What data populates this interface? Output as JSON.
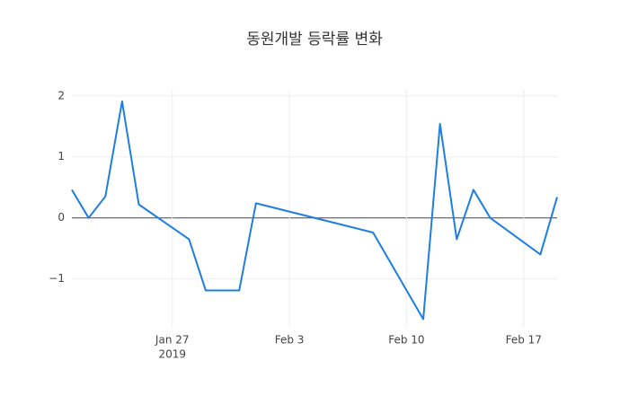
{
  "chart_data": {
    "type": "line",
    "title": "동원개발 등락률 변화",
    "x": [
      "2019-01-21",
      "2019-01-22",
      "2019-01-23",
      "2019-01-24",
      "2019-01-25",
      "2019-01-28",
      "2019-01-29",
      "2019-01-31",
      "2019-02-01",
      "2019-02-08",
      "2019-02-11",
      "2019-02-12",
      "2019-02-13",
      "2019-02-14",
      "2019-02-15",
      "2019-02-18",
      "2019-02-19"
    ],
    "series": [
      {
        "name": "등락률",
        "color": "#1f7ee0",
        "values": [
          0.46,
          0.0,
          0.35,
          1.91,
          0.22,
          -0.35,
          -1.19,
          -1.19,
          0.24,
          -0.24,
          -1.66,
          1.54,
          -0.35,
          0.46,
          0.0,
          -0.6,
          0.34
        ]
      }
    ],
    "xlim": [
      "2019-01-21",
      "2019-02-19"
    ],
    "xticks": [
      {
        "value": "2019-01-27",
        "label": "Jan 27"
      },
      {
        "value": "2019-02-03",
        "label": "Feb 3"
      },
      {
        "value": "2019-02-10",
        "label": "Feb 10"
      },
      {
        "value": "2019-02-17",
        "label": "Feb 17"
      }
    ],
    "x_year": "2019",
    "ylim": [
      -1.8,
      2.1
    ],
    "yticks": [
      2,
      1,
      0,
      {
        "value": -1,
        "label": "−1"
      }
    ],
    "grid": true
  }
}
